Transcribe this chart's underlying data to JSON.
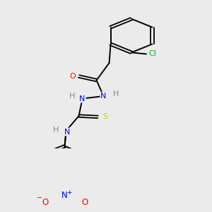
{
  "background_color": "#ebebeb",
  "bond_color": "#000000",
  "atom_colors": {
    "O": "#ff0000",
    "N": "#0000ff",
    "S": "#cccc00",
    "Cl": "#00bb00",
    "H": "#6a9090",
    "C": "#000000"
  },
  "figsize": [
    3.0,
    3.0
  ],
  "dpi": 100
}
